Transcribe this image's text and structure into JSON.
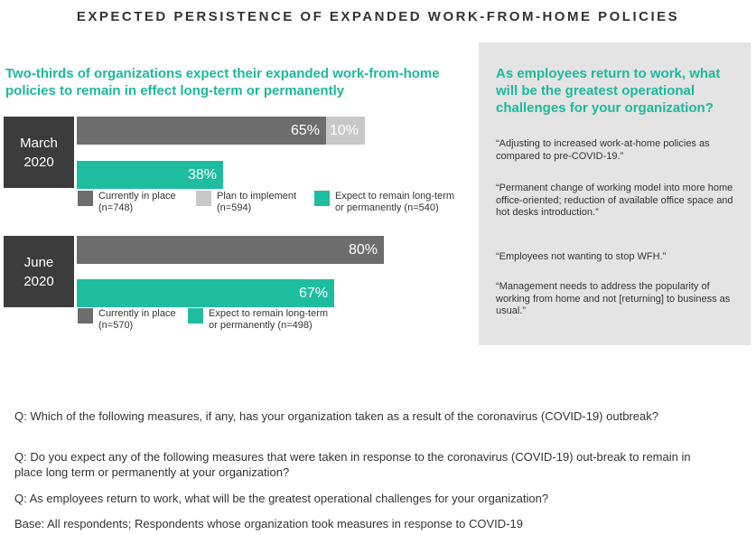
{
  "title": "EXPECTED PERSISTENCE OF EXPANDED WORK-FROM-HOME POLICIES",
  "subtitle": "Two-thirds of organizations expect their expanded work-from-home policies to remain in effect long-term or permanently",
  "colors": {
    "currently": "#6d6d6d",
    "plan": "#c8c8c8",
    "expect": "#1fbda0",
    "accent": "#1db89a",
    "period_bg": "#3c3c3c",
    "panel_bg": "#e4e4e4"
  },
  "chart_data": {
    "type": "bar",
    "orientation": "horizontal",
    "value_unit": "%",
    "xlim": [
      0,
      100
    ],
    "groups": [
      {
        "period": "March\n2020",
        "bars": [
          {
            "segments": [
              {
                "series": "currently",
                "value": 65,
                "label": "65%"
              },
              {
                "series": "plan",
                "value": 10,
                "label": "10%"
              }
            ]
          },
          {
            "segments": [
              {
                "series": "expect",
                "value": 38,
                "label": "38%"
              }
            ]
          }
        ],
        "legend": [
          {
            "series": "currently",
            "line1": "Currently in place",
            "line2": "(n=748)"
          },
          {
            "series": "plan",
            "line1": "Plan to implement",
            "line2": "(n=594)"
          },
          {
            "series": "expect",
            "line1": "Expect to remain long-term",
            "line2": "or permanently (n=540)"
          }
        ]
      },
      {
        "period": "June\n2020",
        "bars": [
          {
            "segments": [
              {
                "series": "currently",
                "value": 80,
                "label": "80%"
              }
            ]
          },
          {
            "segments": [
              {
                "series": "expect",
                "value": 67,
                "label": "67%"
              }
            ]
          }
        ],
        "legend": [
          {
            "series": "currently",
            "line1": "Currently in place",
            "line2": "(n=570)"
          },
          {
            "series": "expect",
            "line1": "Expect to remain long-term",
            "line2": "or permanently (n=498)"
          }
        ]
      }
    ]
  },
  "panel": {
    "title": "As employees return to work, what will be the greatest operational challenges for your organization?",
    "quotes": [
      "“Adjusting to increased work-at-home policies as compared to pre-COVID-19.”",
      "“Permanent change of working model into more home office-oriented; reduction of available office space and hot desks introduction.”",
      "“Employees not wanting to stop WFH.”",
      "“Management needs to address the popularity of working from home and not [returning] to business as usual.”"
    ]
  },
  "footnotes": [
    "Q: Which of the following measures, if any, has your organization taken as a result of the coronavirus (COVID-19) outbreak?",
    "Q: Do you expect any of the following measures that were taken in response to the coronavirus (COVID-19) out-break to remain in place long term or permanently at your organization?",
    "Q: As employees return to work, what will be the greatest operational challenges for your organization?",
    "Base: All respondents; Respondents whose organization took measures in response to COVID-19"
  ]
}
